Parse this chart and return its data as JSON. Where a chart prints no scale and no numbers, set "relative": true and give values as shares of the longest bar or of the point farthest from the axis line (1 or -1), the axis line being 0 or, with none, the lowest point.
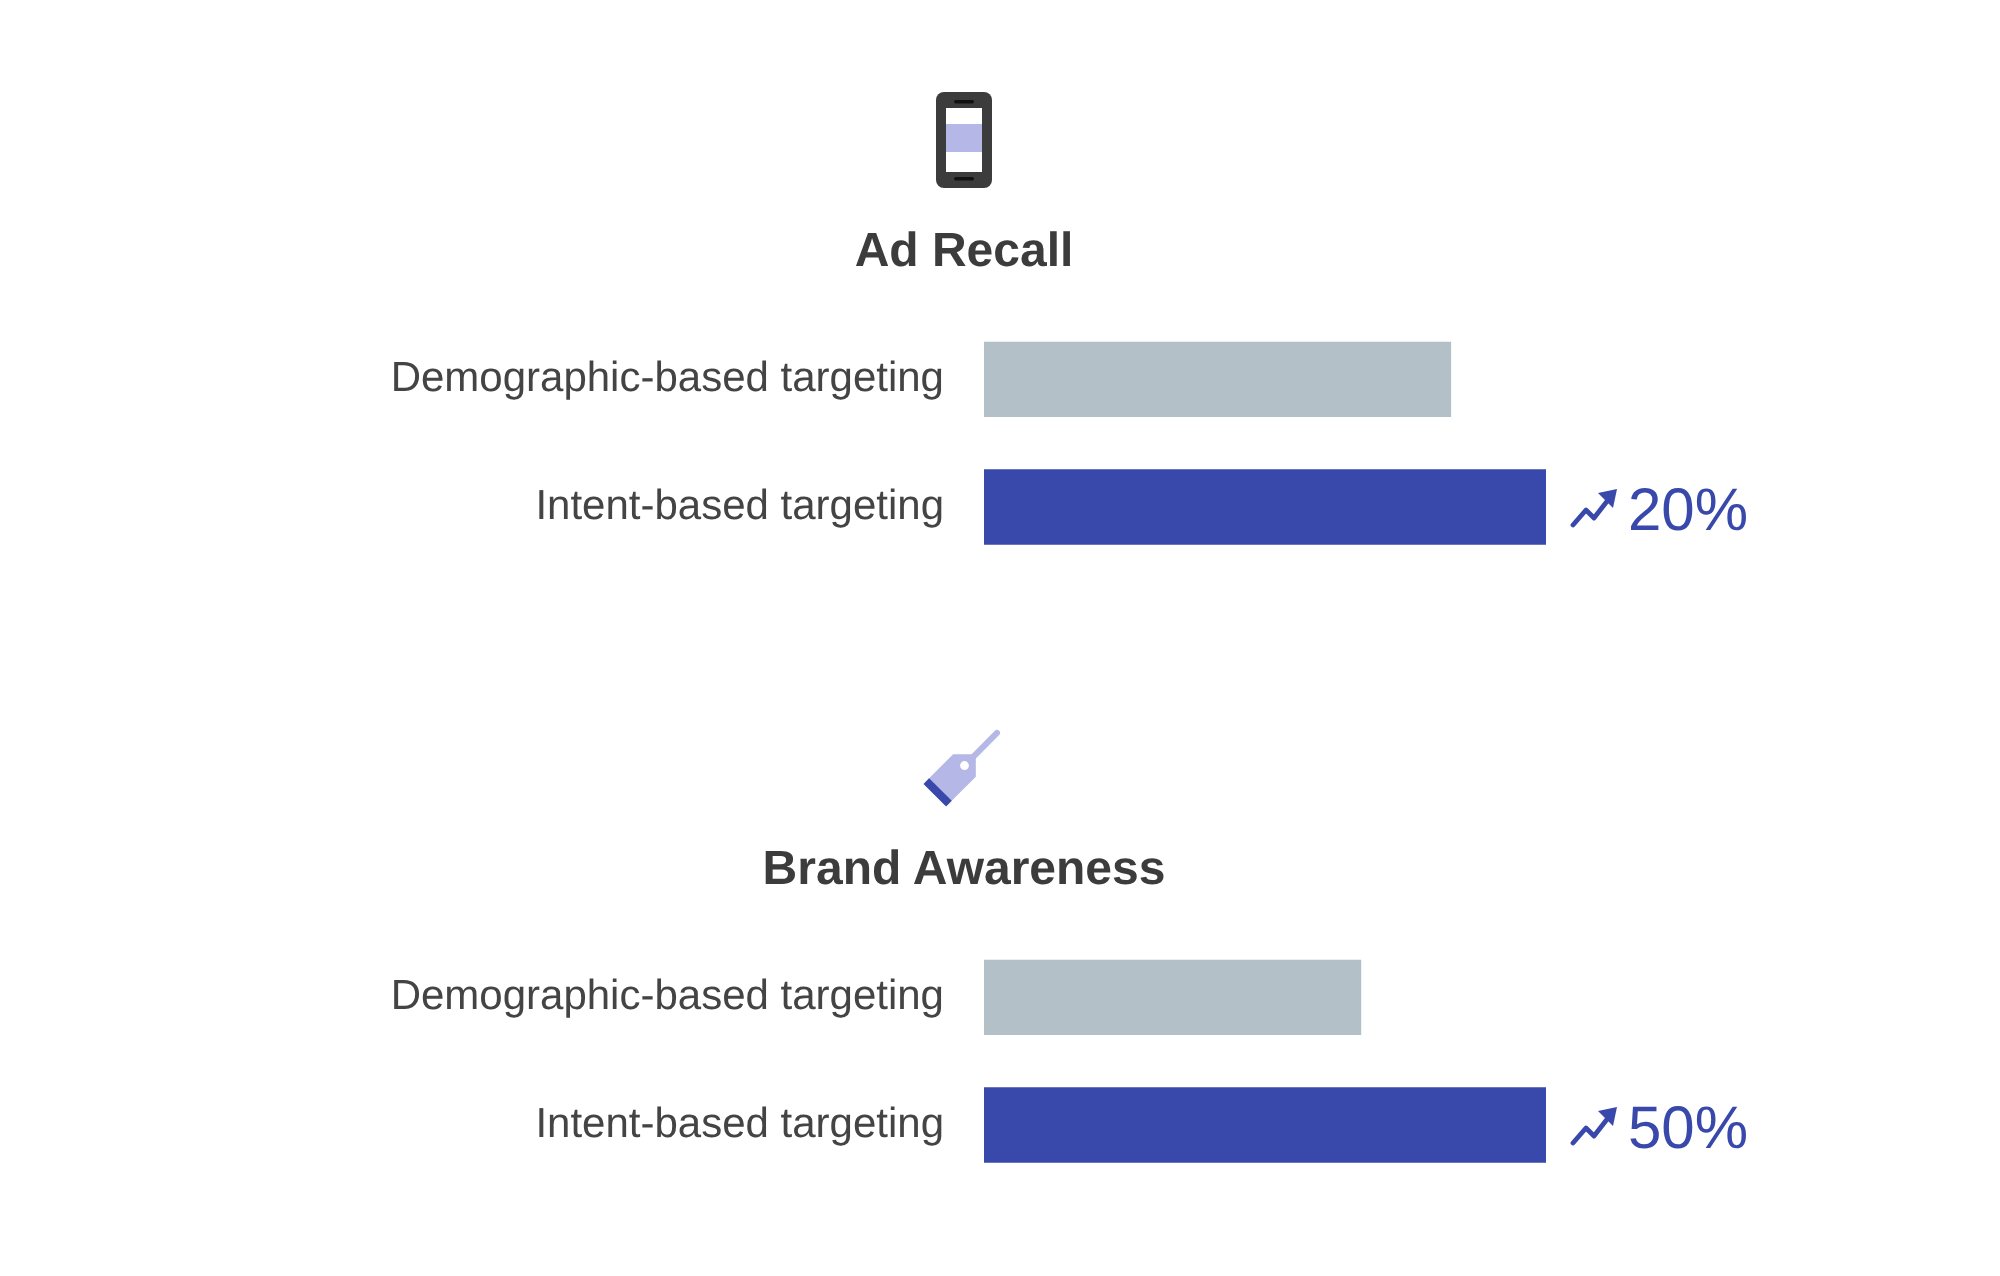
{
  "chart_data": [
    {
      "type": "bar",
      "title": "Ad Recall",
      "orientation": "horizontal",
      "relative": true,
      "categories": [
        "Demographic-based targeting",
        "Intent-based targeting"
      ],
      "values": [
        0.83,
        1
      ],
      "colors": [
        "#b3c0c7",
        "#3949ab"
      ],
      "annotations": [
        {
          "text": "20%",
          "x": 1,
          "y": "Intent-based targeting"
        }
      ]
    },
    {
      "type": "bar",
      "title": "Brand Awareness",
      "orientation": "horizontal",
      "relative": true,
      "categories": [
        "Demographic-based targeting",
        "Intent-based targeting"
      ],
      "values": [
        0.67,
        1
      ],
      "colors": [
        "#b3c0c7",
        "#3949ab"
      ],
      "annotations": [
        {
          "text": "50%",
          "x": 1,
          "y": "Intent-based targeting"
        }
      ]
    }
  ]
}
